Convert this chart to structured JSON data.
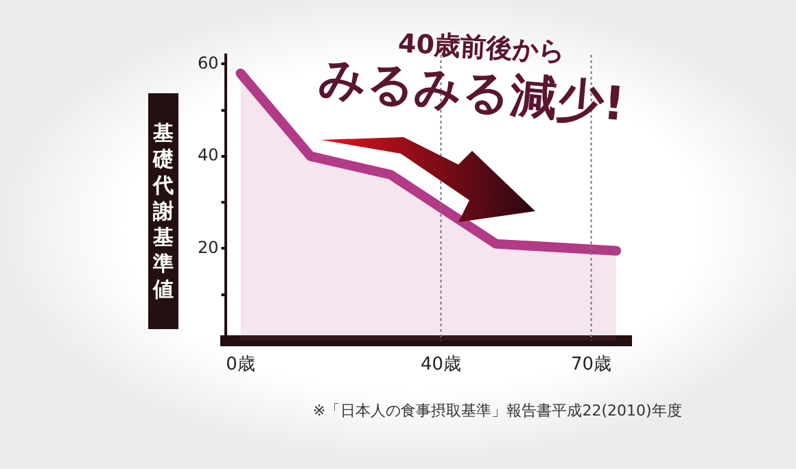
{
  "chart_data": {
    "type": "area",
    "ylabel": "基礎代謝基準値",
    "annotations": [
      "40歳前後から",
      "みるみる減少!",
      "※「日本人の食事摂取基準」報告書平成22(2010)年度"
    ],
    "x": [
      0,
      14,
      30,
      51,
      75
    ],
    "series": [
      {
        "color": "#b23a86",
        "values": [
          58,
          40,
          36,
          21,
          19.5
        ]
      }
    ],
    "xlim": [
      -3,
      78
    ],
    "xticks": [
      {
        "value": 0,
        "label": "0歳"
      },
      {
        "value": 40,
        "label": "40歳"
      },
      {
        "value": 70,
        "label": "70歳"
      }
    ],
    "ylim": [
      0,
      62
    ],
    "yticks": [
      {
        "value": 10,
        "label": null
      },
      20,
      {
        "value": 30,
        "label": null
      },
      40,
      {
        "value": 50,
        "label": null
      },
      60
    ],
    "ref_lines": [
      {
        "axis": "x",
        "value": 40,
        "color": "#777777",
        "line_style": "dotted"
      },
      {
        "axis": "x",
        "value": 70,
        "color": "#777777",
        "line_style": "dotted"
      }
    ],
    "grid": false,
    "legend": false,
    "marker": "none"
  }
}
